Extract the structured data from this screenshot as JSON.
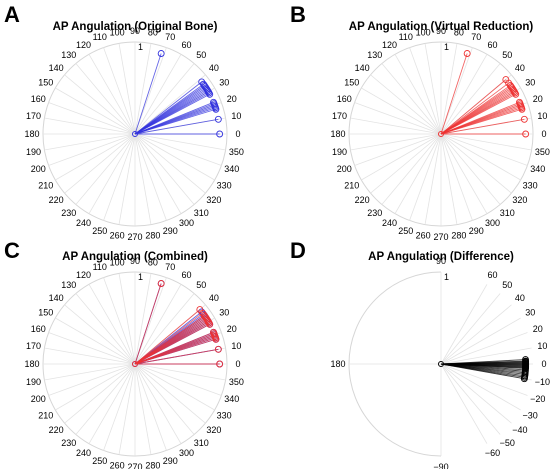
{
  "chart_data": [
    {
      "type": "polar-compass",
      "panel_letter": "A",
      "title": "AP Angulation (Original Bone)",
      "radial_tick_label": "1",
      "angle_ticks": [
        0,
        10,
        20,
        30,
        40,
        50,
        60,
        70,
        80,
        90,
        100,
        110,
        120,
        130,
        140,
        150,
        160,
        170,
        180,
        190,
        200,
        210,
        220,
        230,
        240,
        250,
        260,
        270,
        280,
        290,
        300,
        310,
        320,
        330,
        340,
        350
      ],
      "angle_tick_labels": [
        "0",
        "10",
        "20",
        "30",
        "40",
        "50",
        "60",
        "70",
        "80",
        "90",
        "100",
        "110",
        "120",
        "130",
        "140",
        "150",
        "160",
        "170",
        "180",
        "190",
        "200",
        "210",
        "220",
        "230",
        "240",
        "250",
        "260",
        "270",
        "280",
        "290",
        "300",
        "310",
        "320",
        "330",
        "340",
        "350"
      ],
      "series": [
        {
          "color": "#3333dd",
          "angles_deg": [
            72,
            38,
            36,
            35,
            34,
            33,
            32,
            31,
            30,
            29,
            28,
            22,
            21,
            20,
            19,
            18,
            17,
            10,
            0
          ]
        }
      ]
    },
    {
      "type": "polar-compass",
      "panel_letter": "B",
      "title": "AP Angulation (Virtual Reduction)",
      "radial_tick_label": "1",
      "angle_ticks": [
        0,
        10,
        20,
        30,
        40,
        50,
        60,
        70,
        80,
        90,
        100,
        110,
        120,
        130,
        140,
        150,
        160,
        170,
        180,
        190,
        200,
        210,
        220,
        230,
        240,
        250,
        260,
        270,
        280,
        290,
        300,
        310,
        320,
        330,
        340,
        350
      ],
      "angle_tick_labels": [
        "0",
        "10",
        "20",
        "30",
        "40",
        "50",
        "60",
        "70",
        "80",
        "90",
        "100",
        "110",
        "120",
        "130",
        "140",
        "150",
        "160",
        "170",
        "180",
        "190",
        "200",
        "210",
        "220",
        "230",
        "240",
        "250",
        "260",
        "270",
        "280",
        "290",
        "300",
        "310",
        "320",
        "330",
        "340",
        "350"
      ],
      "series": [
        {
          "color": "#ee3333",
          "angles_deg": [
            72,
            40,
            37,
            35,
            34,
            33,
            32,
            31,
            30,
            29,
            28,
            22,
            21,
            20,
            19,
            18,
            17,
            10,
            0
          ]
        }
      ]
    },
    {
      "type": "polar-compass",
      "panel_letter": "C",
      "title": "AP Angulation (Combined)",
      "radial_tick_label": "1",
      "angle_ticks": [
        0,
        10,
        20,
        30,
        40,
        50,
        60,
        70,
        80,
        90,
        100,
        110,
        120,
        130,
        140,
        150,
        160,
        170,
        180,
        190,
        200,
        210,
        220,
        230,
        240,
        250,
        260,
        270,
        280,
        290,
        300,
        310,
        320,
        330,
        340,
        350
      ],
      "angle_tick_labels": [
        "0",
        "10",
        "20",
        "30",
        "40",
        "50",
        "60",
        "70",
        "80",
        "90",
        "100",
        "110",
        "120",
        "130",
        "140",
        "150",
        "160",
        "170",
        "180",
        "190",
        "200",
        "210",
        "220",
        "230",
        "240",
        "250",
        "260",
        "270",
        "280",
        "290",
        "300",
        "310",
        "320",
        "330",
        "340",
        "350"
      ],
      "series": [
        {
          "color": "#3333dd",
          "angles_deg": [
            72,
            38,
            36,
            35,
            34,
            33,
            32,
            31,
            30,
            29,
            28,
            22,
            21,
            20,
            19,
            18,
            17,
            10,
            0
          ]
        },
        {
          "color": "#ee3333",
          "angles_deg": [
            72,
            40,
            37,
            35,
            34,
            33,
            32,
            31,
            30,
            29,
            28,
            22,
            21,
            20,
            19,
            18,
            17,
            10,
            0
          ]
        }
      ]
    },
    {
      "type": "polar-compass",
      "panel_letter": "D",
      "title": "AP Angulation (Difference)",
      "radial_tick_label": "1",
      "angle_ticks": [
        90,
        60,
        50,
        40,
        30,
        20,
        10,
        0,
        -10,
        -20,
        -30,
        -40,
        -50,
        -60,
        -90,
        180
      ],
      "angle_tick_labels": [
        "90",
        "60",
        "50",
        "40",
        "30",
        "20",
        "10",
        "0",
        "−10",
        "−20",
        "−30",
        "−40",
        "−50",
        "−60",
        "−90",
        "180"
      ],
      "series": [
        {
          "color": "#000000",
          "angles_deg": [
            3,
            2,
            1.5,
            1,
            0.5,
            0,
            -0.5,
            -1,
            -1.5,
            -2,
            -2.5,
            -3,
            -4,
            -5,
            -6,
            -7,
            -8,
            -9,
            -10
          ]
        }
      ]
    }
  ]
}
